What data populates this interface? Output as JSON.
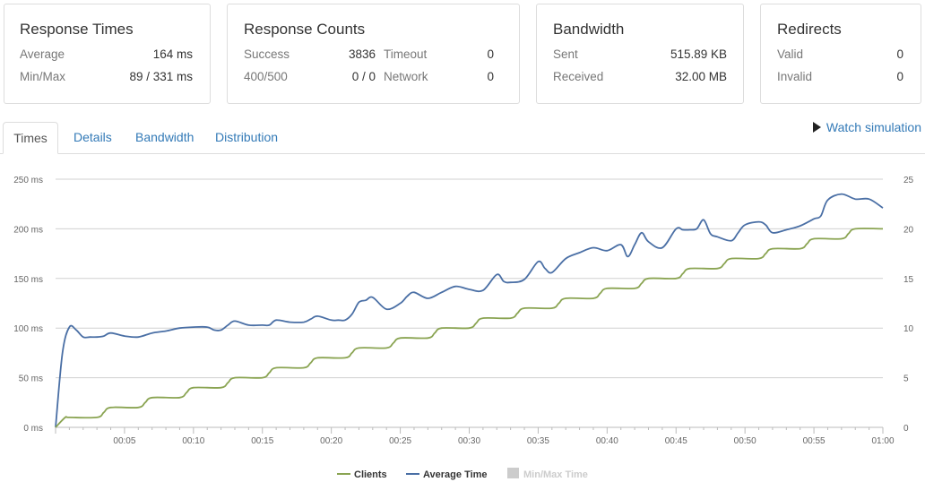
{
  "response_times": {
    "title": "Response Times",
    "rows": [
      {
        "label": "Average",
        "value": "164 ms"
      },
      {
        "label": "Min/Max",
        "value": "89 / 331 ms"
      }
    ]
  },
  "response_counts": {
    "title": "Response Counts",
    "rows": [
      {
        "label": "Success",
        "value": "3836",
        "label2": "Timeout",
        "value2": "0"
      },
      {
        "label": "400/500",
        "value": "0 / 0",
        "label2": "Network",
        "value2": "0"
      }
    ]
  },
  "bandwidth_card": {
    "title": "Bandwidth",
    "rows": [
      {
        "label": "Sent",
        "value": "515.89 KB"
      },
      {
        "label": "Received",
        "value": "32.00 MB"
      }
    ]
  },
  "redirects": {
    "title": "Redirects",
    "rows": [
      {
        "label": "Valid",
        "value": "0"
      },
      {
        "label": "Invalid",
        "value": "0"
      }
    ]
  },
  "tabs": [
    {
      "label": "Times",
      "active": true
    },
    {
      "label": "Details",
      "active": false
    },
    {
      "label": "Bandwidth",
      "active": false
    },
    {
      "label": "Distribution",
      "active": false
    }
  ],
  "watch_simulation": "Watch simulation",
  "colors": {
    "clients": "#8aa452",
    "average": "#4a6fa5",
    "minmax": "#cccccc",
    "grid": "#d0d0d0",
    "link": "#337ab7"
  },
  "chart_data": {
    "type": "line",
    "title": "",
    "xlabel": "",
    "ylabel": "",
    "x_ticks": [
      "00:05",
      "00:10",
      "00:15",
      "00:20",
      "00:25",
      "00:30",
      "00:35",
      "00:40",
      "00:45",
      "00:50",
      "00:55",
      "01:00"
    ],
    "y_left_ticks": [
      "0 ms",
      "50 ms",
      "100 ms",
      "150 ms",
      "200 ms",
      "250 ms"
    ],
    "y_right_ticks": [
      "0",
      "5",
      "10",
      "15",
      "20",
      "25"
    ],
    "ylim_left": [
      0,
      250
    ],
    "ylim_right": [
      0,
      25
    ],
    "xlim_seconds": [
      0,
      60
    ],
    "legend": [
      {
        "name": "Clients",
        "color": "#8aa452",
        "active": true
      },
      {
        "name": "Average Time",
        "color": "#4a6fa5",
        "active": true
      },
      {
        "name": "Min/Max Time",
        "color": "#cccccc",
        "active": false
      }
    ],
    "series": [
      {
        "name": "Average Time",
        "axis": "left",
        "x": [
          0,
          0.5,
          1,
          1.5,
          2,
          2.5,
          3,
          3.5,
          4,
          5,
          6,
          7,
          8,
          9,
          10,
          11,
          11.5,
          12,
          12.5,
          13,
          14,
          15,
          15.5,
          16,
          17,
          18,
          18.5,
          19,
          20,
          20.5,
          21,
          21.5,
          22,
          22.5,
          23,
          24,
          25,
          25.5,
          26,
          27,
          28,
          29,
          30,
          31,
          32,
          32.5,
          33,
          34,
          35,
          35.5,
          36,
          37,
          38,
          39,
          40,
          41,
          41.5,
          42,
          42.5,
          43,
          44,
          45,
          45.5,
          46,
          46.5,
          47,
          47.5,
          48,
          49,
          49.5,
          50,
          51,
          51.5,
          52,
          53,
          54,
          55,
          55.5,
          56,
          57,
          58,
          59,
          60
        ],
        "y": [
          0,
          75,
          101,
          98,
          91,
          91,
          91,
          92,
          95,
          92,
          91,
          95,
          97,
          100,
          101,
          101,
          98,
          98,
          103,
          107,
          103,
          103,
          103,
          108,
          106,
          106,
          109,
          112,
          108,
          108,
          108,
          114,
          126,
          128,
          131,
          119,
          125,
          132,
          136,
          130,
          136,
          142,
          139,
          138,
          154,
          147,
          146,
          149,
          167,
          160,
          156,
          170,
          176,
          181,
          178,
          184,
          172,
          184,
          196,
          187,
          181,
          200,
          199,
          199,
          200,
          209,
          195,
          192,
          188,
          196,
          204,
          207,
          204,
          196,
          199,
          203,
          210,
          213,
          229,
          235,
          230,
          230,
          221
        ]
      },
      {
        "name": "Clients",
        "axis": "right",
        "x": [
          0,
          0.7,
          1,
          3,
          3.5,
          4,
          6,
          6.5,
          7,
          9,
          9.5,
          10,
          12,
          12.5,
          13,
          15,
          15.5,
          16,
          18,
          18.5,
          19,
          21,
          21.5,
          22,
          24,
          24.5,
          25,
          27,
          27.5,
          28,
          30,
          30.5,
          31,
          33,
          33.5,
          34,
          36,
          36.5,
          37,
          39,
          39.5,
          40,
          42,
          42.5,
          43,
          45,
          45.5,
          46,
          48,
          48.5,
          49,
          51,
          51.5,
          52,
          54,
          54.5,
          55,
          57,
          57.5,
          58,
          60
        ],
        "y": [
          0,
          1,
          1,
          1,
          1.5,
          2,
          2,
          2.5,
          3,
          3,
          3.5,
          4,
          4,
          4.5,
          5,
          5,
          5.5,
          6,
          6,
          6.5,
          7,
          7,
          7.5,
          8,
          8,
          8.5,
          9,
          9,
          9.5,
          10,
          10,
          10.5,
          11,
          11,
          11.5,
          12,
          12,
          12.5,
          13,
          13,
          13.5,
          14,
          14,
          14.5,
          15,
          15,
          15.5,
          16,
          16,
          16.5,
          17,
          17,
          17.5,
          18,
          18,
          18.5,
          19,
          19,
          19.5,
          20,
          20
        ]
      }
    ]
  }
}
